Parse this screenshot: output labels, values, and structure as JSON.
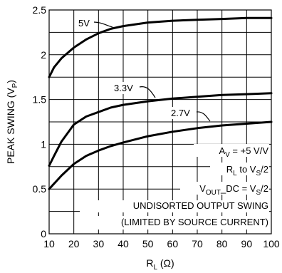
{
  "chart_data": {
    "type": "line",
    "xlabel": "R",
    "xlabel_sub": "L",
    "xlabel_unit": "(Ω)",
    "ylabel": "PEAK SWING (V",
    "ylabel_sub": "P",
    "ylabel_close": ")",
    "xlim": [
      10,
      100
    ],
    "ylim": [
      0,
      2.5
    ],
    "xticks": [
      10,
      20,
      30,
      40,
      50,
      60,
      70,
      80,
      90,
      100
    ],
    "yticks": [
      {
        "v": 0,
        "label": "0"
      },
      {
        "v": 0.5,
        "label": "0.5"
      },
      {
        "v": 1,
        "label": "1"
      },
      {
        "v": 1.5,
        "label": "1.5"
      },
      {
        "v": 2,
        "label": "2"
      },
      {
        "v": 2.5,
        "label": "2.5"
      }
    ],
    "grid": true,
    "series": [
      {
        "name": "5V",
        "x": [
          10,
          12,
          15,
          20,
          25,
          30,
          35,
          40,
          50,
          60,
          70,
          80,
          90,
          100
        ],
        "y": [
          1.75,
          1.86,
          1.96,
          2.08,
          2.17,
          2.24,
          2.29,
          2.32,
          2.36,
          2.38,
          2.39,
          2.4,
          2.41,
          2.41
        ]
      },
      {
        "name": "3.3V",
        "x": [
          10,
          12,
          15,
          20,
          25,
          30,
          35,
          40,
          50,
          60,
          70,
          80,
          90,
          100
        ],
        "y": [
          0.76,
          0.87,
          1.03,
          1.22,
          1.31,
          1.36,
          1.41,
          1.44,
          1.48,
          1.51,
          1.53,
          1.55,
          1.56,
          1.57
        ]
      },
      {
        "name": "2.7V",
        "x": [
          10,
          12,
          15,
          20,
          25,
          30,
          35,
          40,
          50,
          60,
          70,
          80,
          90,
          100
        ],
        "y": [
          0.5,
          0.56,
          0.65,
          0.78,
          0.87,
          0.93,
          0.98,
          1.02,
          1.09,
          1.14,
          1.18,
          1.21,
          1.23,
          1.25
        ]
      }
    ],
    "annotations": [
      {
        "id": "av",
        "main": "A",
        "sub": "V",
        "rest": " = +5 V/V"
      },
      {
        "id": "rl",
        "main": "R",
        "sub": "L",
        "rest": " to V",
        "sub2": "S",
        "rest2": "/2"
      },
      {
        "id": "vout",
        "main": "V",
        "sub": "OUT",
        "rest": "_DC = V",
        "sub2": "S",
        "rest2": "/2"
      },
      {
        "id": "note1",
        "main": "UNDISORTED OUTPUT SWING"
      },
      {
        "id": "note2",
        "main": "(LIMITED BY SOURCE CURRENT)"
      }
    ]
  }
}
